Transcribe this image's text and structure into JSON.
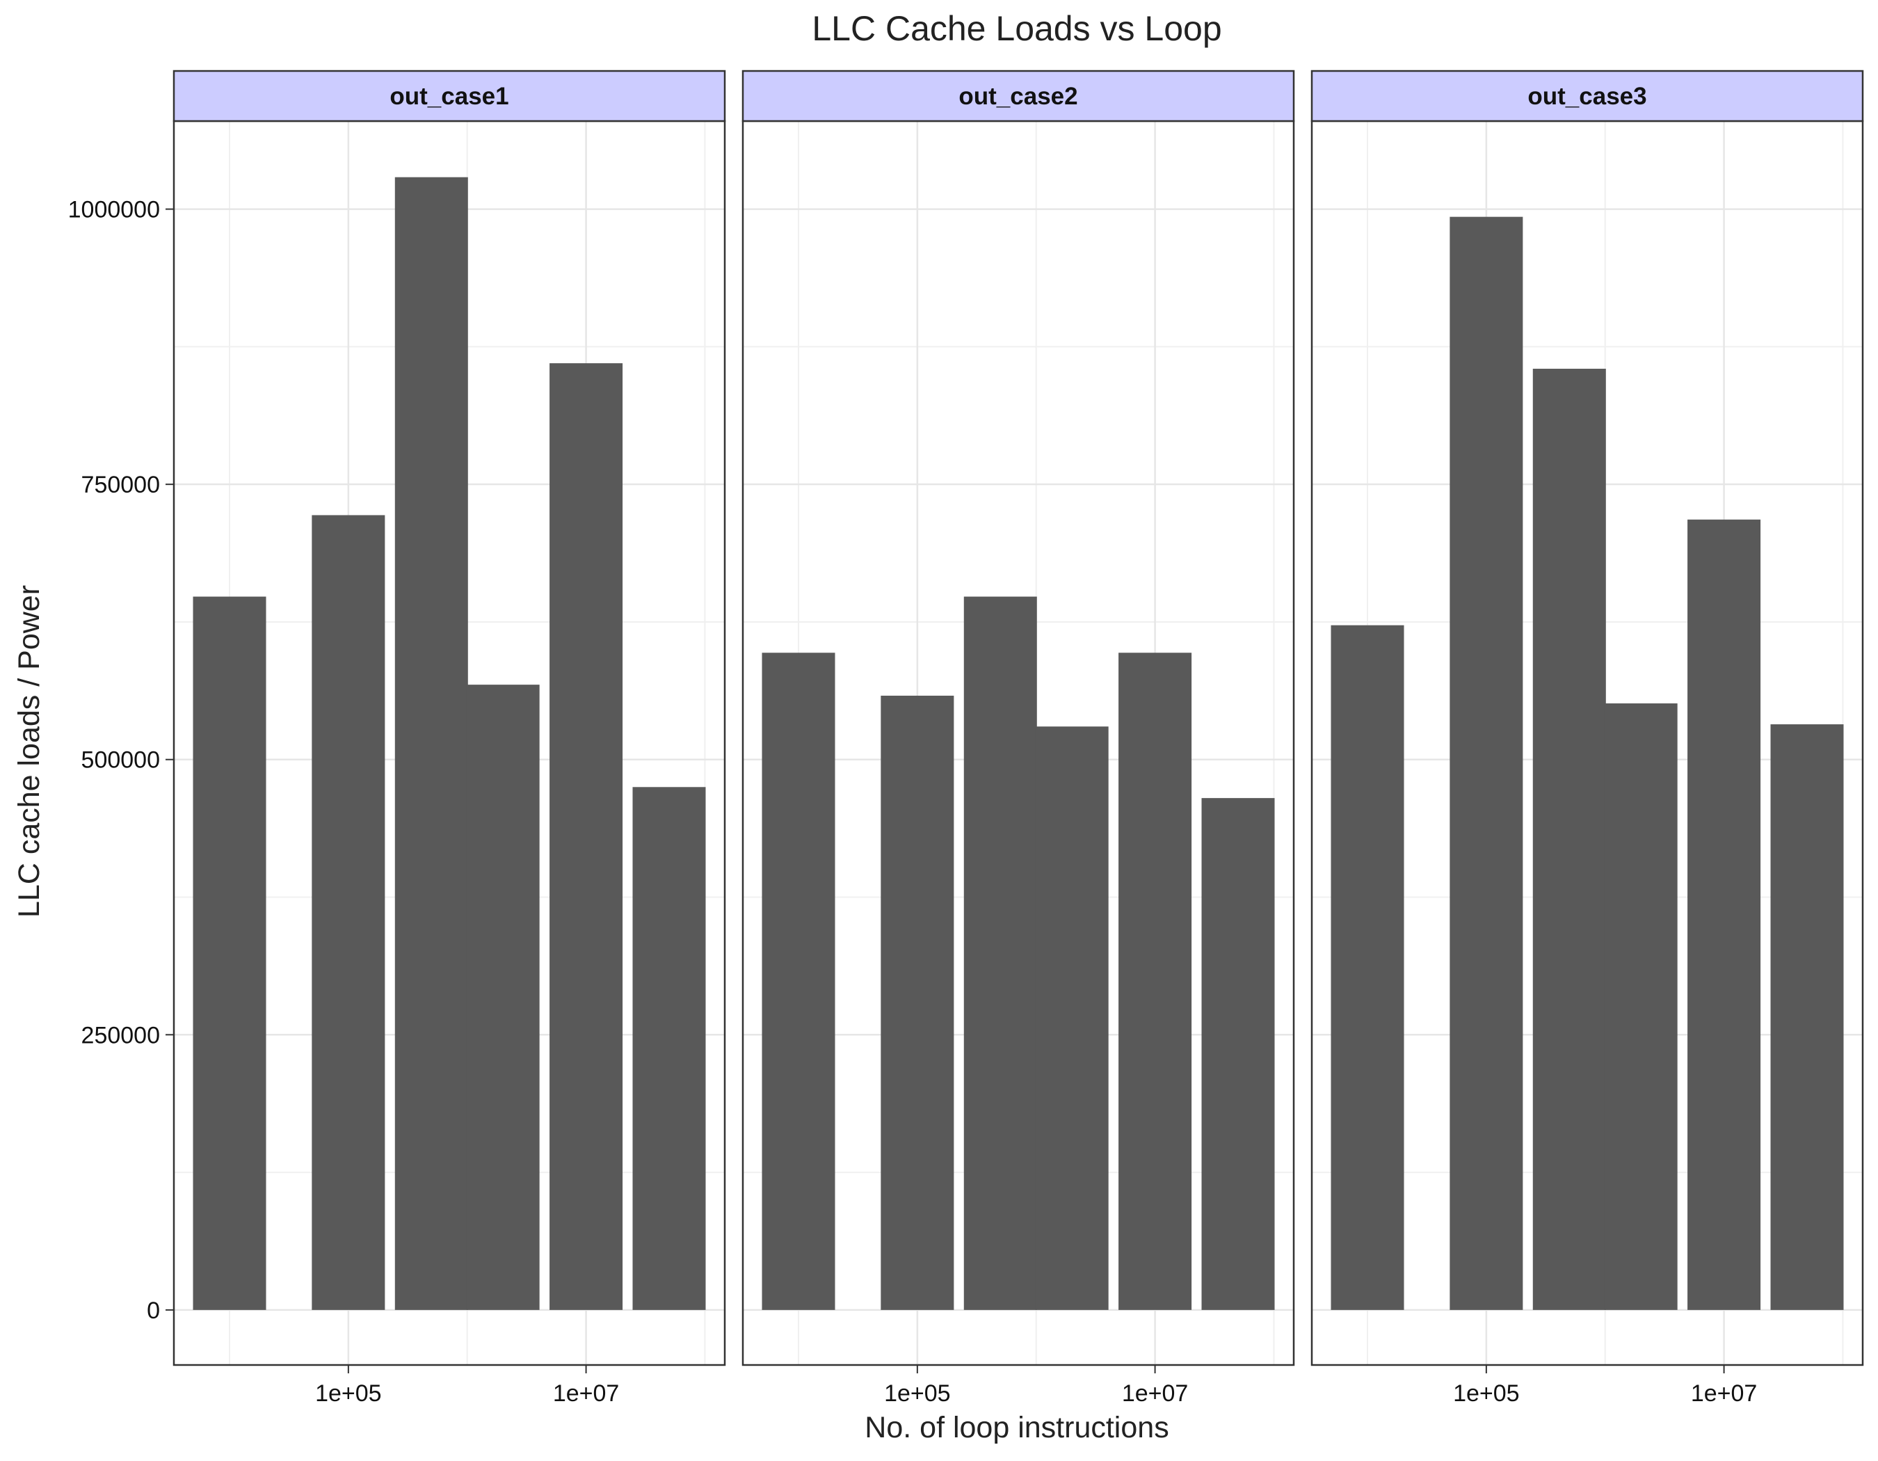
{
  "chart_data": {
    "type": "bar",
    "title": "LLC Cache Loads vs Loop",
    "xlabel": "No. of loop instructions",
    "ylabel": "LLC cache loads / Power",
    "x_scale": "log10",
    "x_ticks": [
      {
        "value": 100000,
        "label": "1e+05"
      },
      {
        "value": 10000000,
        "label": "1e+07"
      }
    ],
    "y_ticks": [
      {
        "value": 0,
        "label": "0"
      },
      {
        "value": 250000,
        "label": "250000"
      },
      {
        "value": 500000,
        "label": "500000"
      },
      {
        "value": 750000,
        "label": "750000"
      },
      {
        "value": 1000000,
        "label": "1000000"
      }
    ],
    "ylim": [
      -50000,
      1080000
    ],
    "x": [
      10000,
      100000,
      500000,
      2000000,
      10000000,
      50000000
    ],
    "grid": true,
    "bar_color": "#595959",
    "strip_color": "#ccccff",
    "facets": [
      {
        "name": "out_case1",
        "values": [
          648000,
          722000,
          1029000,
          568000,
          860000,
          475000
        ]
      },
      {
        "name": "out_case2",
        "values": [
          597000,
          558000,
          648000,
          530000,
          597000,
          465000
        ]
      },
      {
        "name": "out_case3",
        "values": [
          622000,
          993000,
          855000,
          551000,
          718000,
          532000
        ]
      }
    ]
  }
}
